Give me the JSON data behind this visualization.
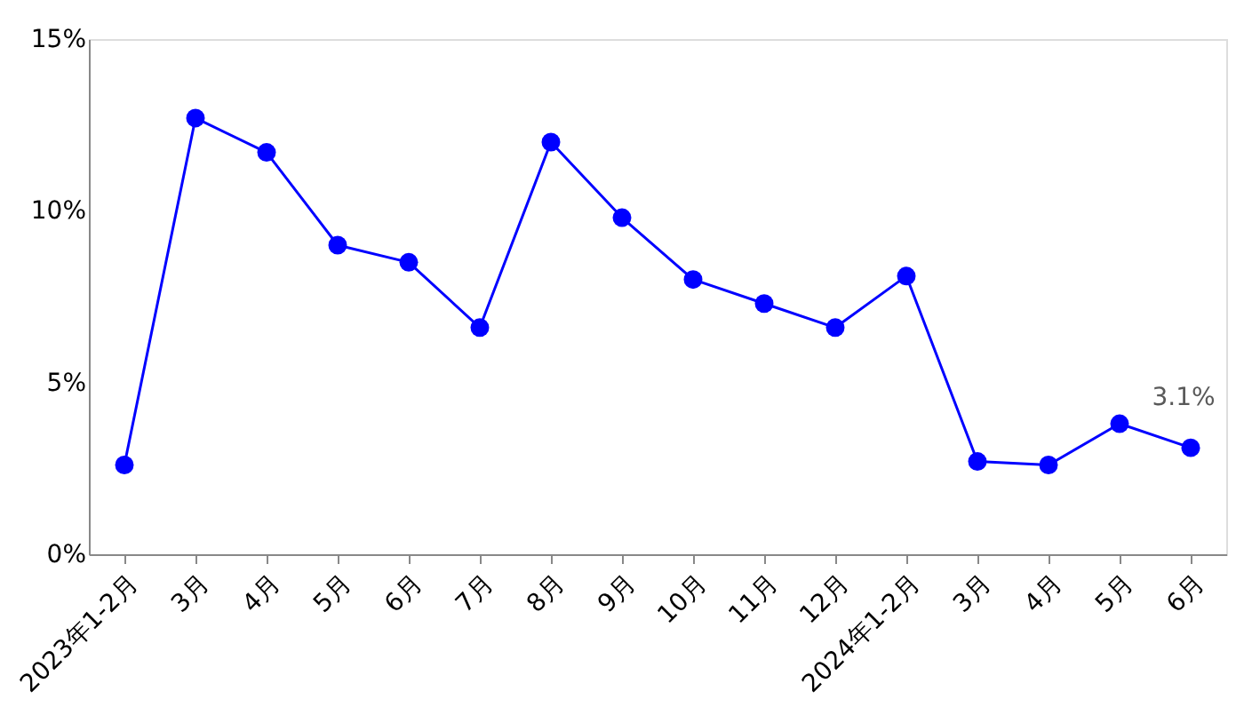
{
  "chart_data": {
    "type": "line",
    "categories": [
      "2023年1-2月",
      "3月",
      "4月",
      "5月",
      "6月",
      "7月",
      "8月",
      "9月",
      "10月",
      "11月",
      "12月",
      "2024年1-2月",
      "3月",
      "4月",
      "5月",
      "6月"
    ],
    "series": [
      {
        "color": "#0000ff",
        "values": [
          2.6,
          12.7,
          11.7,
          9.0,
          8.5,
          6.6,
          12.0,
          9.8,
          8.0,
          7.3,
          6.6,
          8.1,
          2.7,
          2.6,
          3.8,
          3.1
        ],
        "value_labels": [
          null,
          null,
          null,
          null,
          null,
          null,
          null,
          null,
          null,
          null,
          null,
          null,
          null,
          null,
          null,
          "3.1%"
        ]
      }
    ],
    "ylim": [
      0,
      15
    ],
    "yticks": [
      {
        "value": 0,
        "label": "0%"
      },
      {
        "value": 5,
        "label": "5%"
      },
      {
        "value": 10,
        "label": "10%"
      },
      {
        "value": 15,
        "label": "15%"
      }
    ],
    "marker": "circle",
    "line_style": "solid",
    "grid": false
  }
}
